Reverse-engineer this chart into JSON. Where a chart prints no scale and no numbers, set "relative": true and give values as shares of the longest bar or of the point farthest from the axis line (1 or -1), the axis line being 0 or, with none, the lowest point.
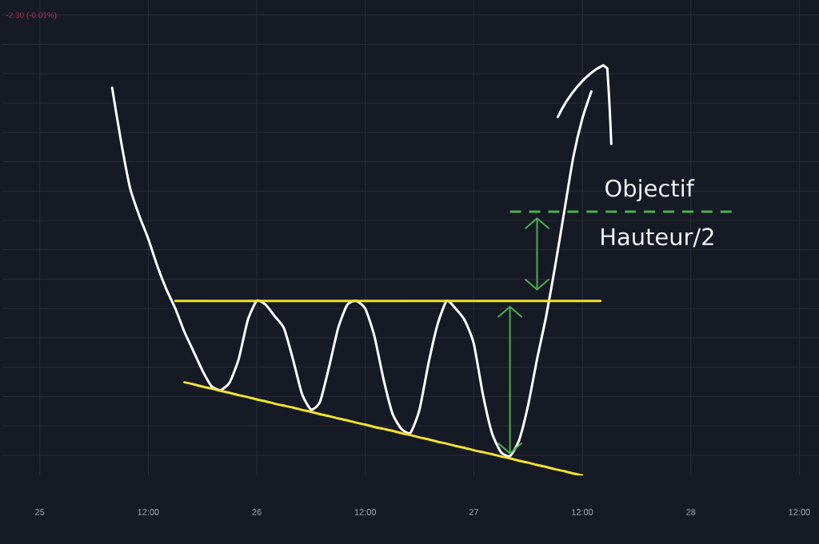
{
  "chart_data": {
    "type": "line",
    "relative": true,
    "categories": [
      null,
      null,
      null,
      null,
      "25",
      null,
      null,
      null,
      null,
      null,
      null,
      null,
      null,
      null,
      null,
      null,
      "12:00",
      null,
      null,
      null,
      null,
      null,
      null,
      null,
      null,
      null,
      null,
      null,
      "26",
      null,
      null,
      null,
      null,
      null,
      null,
      null,
      null,
      null,
      null,
      null,
      "12:00",
      null,
      null,
      null,
      null,
      null,
      null,
      null,
      null,
      null,
      null,
      null,
      "27",
      null,
      null,
      null,
      null,
      null,
      null,
      null,
      null,
      null,
      null,
      null,
      "12:00",
      null,
      null,
      null,
      null,
      null,
      null,
      null,
      null,
      null,
      null,
      null,
      "28",
      null,
      null,
      null,
      null,
      null,
      null,
      null,
      null,
      null,
      null,
      null,
      "12:00",
      null,
      null
    ],
    "grid": true,
    "series": [
      {
        "color": "#ffffff",
        "values": [
          null,
          null,
          null,
          null,
          null,
          null,
          null,
          null,
          null,
          null,
          null,
          null,
          1.0,
          0.86,
          0.74,
          0.67,
          0.61,
          0.54,
          0.48,
          0.43,
          0.37,
          0.32,
          0.27,
          0.23,
          0.22,
          0.24,
          0.3,
          0.4,
          0.45,
          0.44,
          0.41,
          0.38,
          0.3,
          0.21,
          0.17,
          0.19,
          0.28,
          0.38,
          0.44,
          0.45,
          0.43,
          0.36,
          0.25,
          0.16,
          0.12,
          0.11,
          0.17,
          0.29,
          0.39,
          0.45,
          0.43,
          0.4,
          0.34,
          0.21,
          0.11,
          0.06,
          0.05,
          0.09,
          0.18,
          0.3,
          0.41,
          0.54,
          0.68,
          0.82,
          0.92,
          0.99,
          null,
          null,
          null,
          null,
          null,
          null,
          null,
          null,
          null,
          null,
          null,
          null,
          null,
          null,
          null,
          null,
          null,
          null,
          null,
          null,
          null,
          null,
          null,
          null,
          null
        ]
      },
      {
        "color": "#f2e230",
        "values": [
          null,
          null,
          null,
          null,
          null,
          null,
          null,
          null,
          null,
          null,
          null,
          null,
          null,
          null,
          null,
          null,
          null,
          null,
          null,
          0.45,
          0.45,
          0.45,
          0.45,
          0.45,
          0.45,
          0.45,
          0.45,
          0.45,
          0.45,
          0.45,
          0.45,
          0.45,
          0.45,
          0.45,
          0.45,
          0.45,
          0.45,
          0.45,
          0.45,
          0.45,
          0.45,
          0.45,
          0.45,
          0.45,
          0.45,
          0.45,
          0.45,
          0.45,
          0.45,
          0.45,
          0.45,
          0.45,
          0.45,
          0.45,
          0.45,
          0.45,
          0.45,
          0.45,
          0.45,
          0.45,
          0.45,
          0.45,
          0.45,
          0.45,
          0.45,
          0.45,
          0.45,
          null,
          null,
          null,
          null,
          null,
          null,
          null,
          null,
          null,
          null,
          null,
          null,
          null,
          null,
          null,
          null,
          null,
          null,
          null,
          null,
          null,
          null,
          null,
          null
        ]
      },
      {
        "color": "#f2e230",
        "values": [
          null,
          null,
          null,
          null,
          null,
          null,
          null,
          null,
          null,
          null,
          null,
          null,
          null,
          null,
          null,
          null,
          null,
          null,
          null,
          null,
          0.24,
          0.235,
          0.229,
          0.224,
          0.218,
          0.213,
          0.207,
          0.202,
          0.196,
          0.191,
          0.185,
          0.18,
          0.175,
          0.169,
          0.164,
          0.158,
          0.153,
          0.147,
          0.142,
          0.136,
          0.131,
          0.125,
          0.12,
          0.115,
          0.109,
          0.104,
          0.098,
          0.093,
          0.087,
          0.082,
          0.076,
          0.071,
          0.065,
          0.06,
          0.055,
          0.049,
          0.044,
          0.038,
          0.033,
          0.027,
          0.022,
          0.016,
          0.011,
          0.005,
          0,
          null,
          null,
          null,
          null,
          null,
          null,
          null,
          null,
          null,
          null,
          null,
          null,
          null,
          null,
          null,
          null,
          null,
          null,
          null,
          null,
          null,
          null,
          null,
          null,
          null,
          null
        ]
      }
    ],
    "ref_lines": [
      {
        "axis": "y",
        "value": 0.68,
        "label": "Objectif",
        "color": "#4caf50",
        "line_style": "dashed"
      }
    ],
    "annotations": [
      "-2.30 (-0.01%)",
      "Hauteur/2"
    ]
  }
}
